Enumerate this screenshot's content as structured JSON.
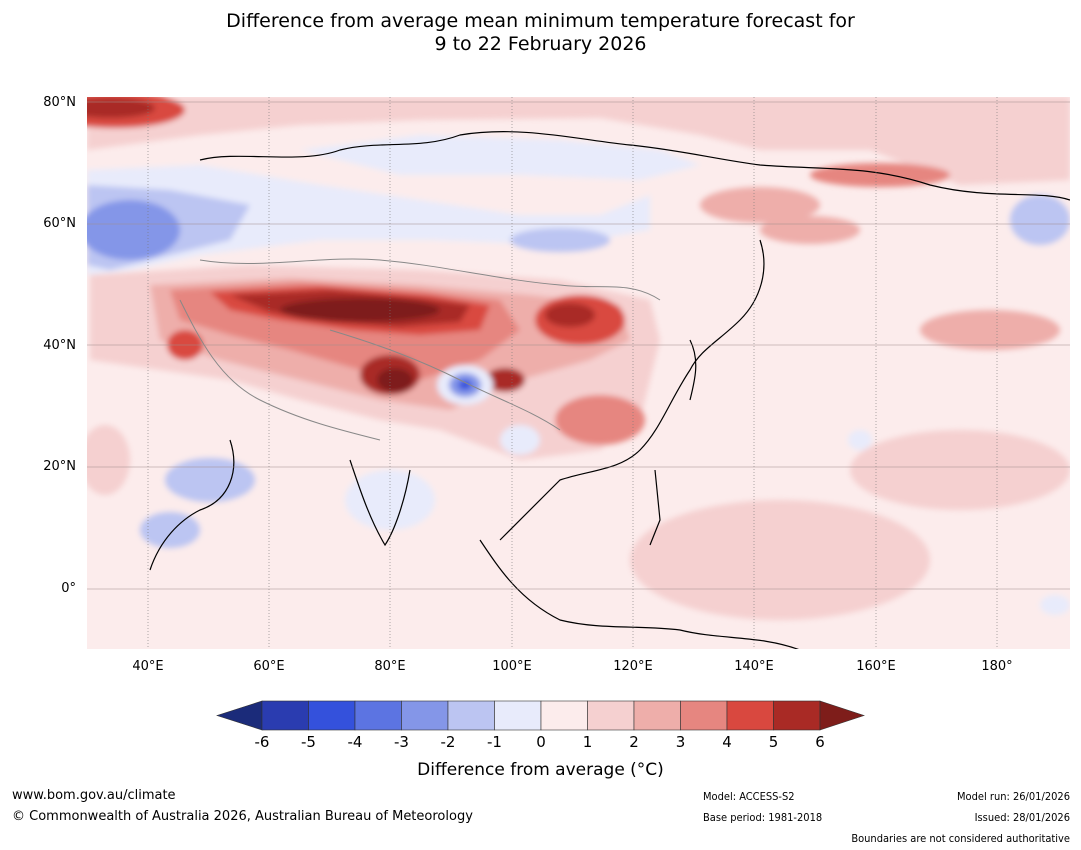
{
  "title_line1": "Difference from average mean minimum temperature forecast for",
  "title_line2": "9 to 22 February 2026",
  "lat_labels": [
    "80°N",
    "60°N",
    "40°N",
    "20°N",
    "0°"
  ],
  "lon_labels": [
    "40°E",
    "60°E",
    "80°E",
    "100°E",
    "120°E",
    "140°E",
    "160°E",
    "180°"
  ],
  "colorbar": {
    "ticks": [
      "-6",
      "-5",
      "-4",
      "-3",
      "-2",
      "-1",
      "0",
      "1",
      "2",
      "3",
      "4",
      "5",
      "6"
    ],
    "colors": [
      "#1b2b7a",
      "#2a3cb0",
      "#3451dc",
      "#5c74e2",
      "#8496e8",
      "#bcc5f2",
      "#e8ebfb",
      "#fcecec",
      "#f5d0d0",
      "#eeaeaa",
      "#e68680",
      "#d9483f",
      "#a92a25",
      "#7e1d1a"
    ],
    "label": "Difference from average (°C)"
  },
  "footer": {
    "website": "www.bom.gov.au/climate",
    "copyright": "© Commonwealth of Australia 2026, Australian Bureau of Meteorology",
    "model": "Model: ACCESS-S2",
    "base_period": "Base period: 1981-2018",
    "model_run": "Model run: 26/01/2026",
    "issued": "Issued: 28/01/2026",
    "disclaimer": "Boundaries are not considered authoritative"
  }
}
